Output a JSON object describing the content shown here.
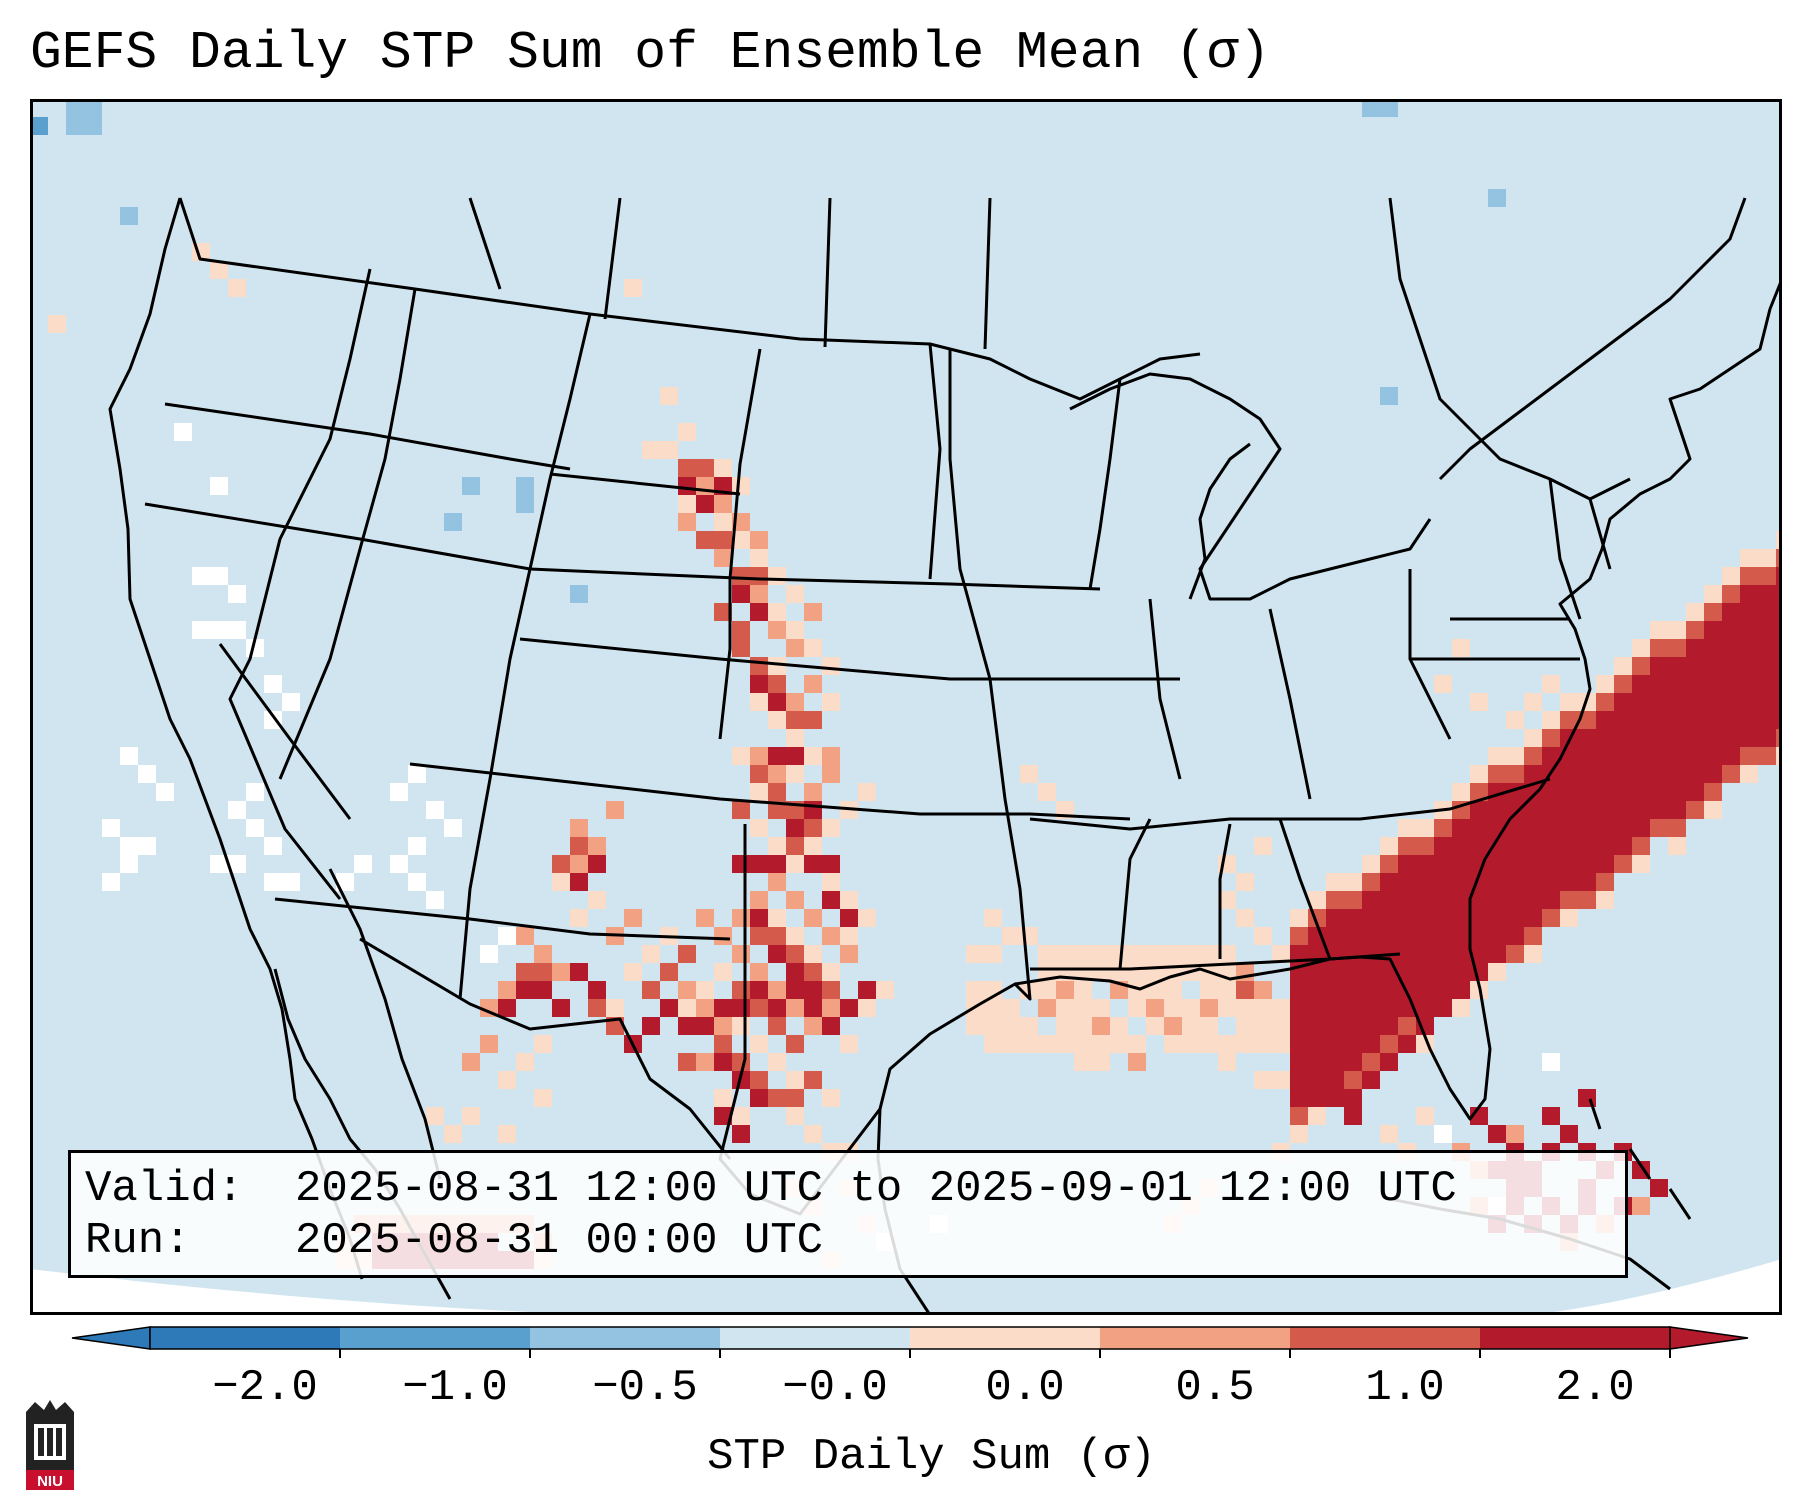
{
  "title": "GEFS Daily STP Sum of Ensemble Mean (σ)",
  "info": {
    "valid_label": "Valid:",
    "valid_value": "2025-08-31 12:00 UTC to 2025-09-01 12:00 UTC",
    "run_label": "Run:",
    "run_value": "2025-08-31 00:00 UTC"
  },
  "colorbar": {
    "label": "STP Daily Sum (σ)",
    "ticks": [
      "−2.0",
      "−1.0",
      "−0.5",
      "−0.0",
      "0.0",
      "0.5",
      "1.0",
      "2.0"
    ],
    "colors": [
      "#2e7ab8",
      "#5aa0cf",
      "#93c3e0",
      "#d1e5f0",
      "#fbdcc8",
      "#f2a283",
      "#d45a4c",
      "#b31a2c"
    ],
    "under_color": "#2e7ab8",
    "over_color": "#b31a2c"
  },
  "map": {
    "ocean_color": "#d1e5f0",
    "region": "Continental United States with Gulf of Mexico and western Atlantic",
    "highlights": [
      {
        "area": "Nebraska–Kansas–Oklahoma–North Texas corridor",
        "level": "1.0 to 2.0"
      },
      {
        "area": "Western Atlantic off Southeast US coast",
        "level": "> 2.0"
      },
      {
        "area": "Northern Gulf of Mexico",
        "level": "0.0 to 0.5"
      },
      {
        "area": "Bahamas",
        "level": "> 2.0"
      }
    ]
  },
  "logo": {
    "text": "NIU",
    "color": "#c8102e"
  }
}
